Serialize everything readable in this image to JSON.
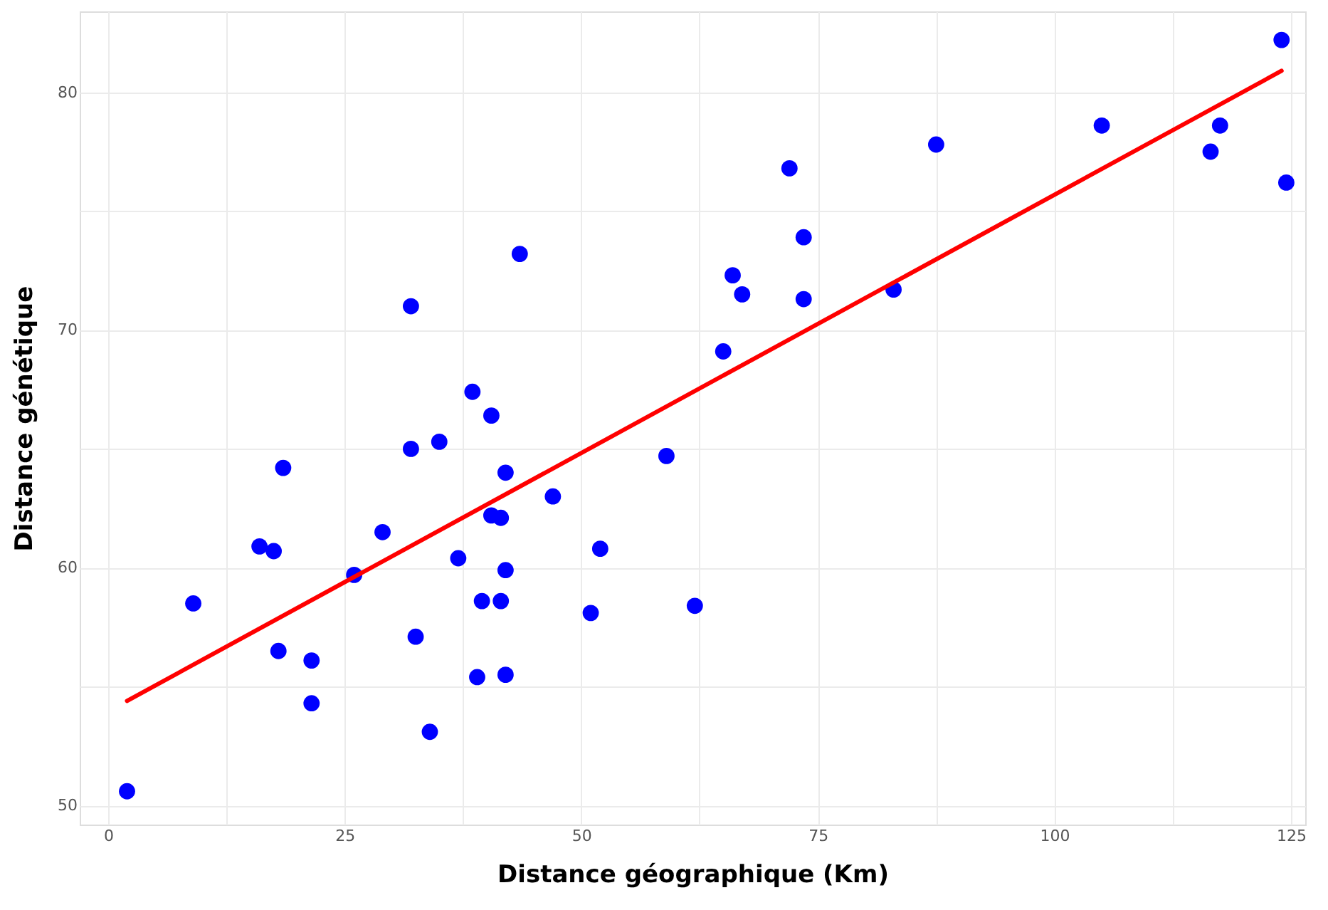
{
  "chart_data": {
    "type": "scatter",
    "xlabel": "Distance géographique (Km)",
    "ylabel": "Distance génétique",
    "xlim": [
      -3,
      126.5
    ],
    "ylim": [
      49.2,
      83.4
    ],
    "xticks": [
      0,
      {
        "value": 12.5,
        "label": null
      },
      25,
      {
        "value": 37.5,
        "label": null
      },
      50,
      {
        "value": 62.5,
        "label": null
      },
      75,
      {
        "value": 87.5,
        "label": null
      },
      100,
      {
        "value": 112.5,
        "label": null
      },
      125
    ],
    "yticks": [
      50,
      {
        "value": 55,
        "label": null
      },
      60,
      {
        "value": 65,
        "label": null
      },
      70,
      {
        "value": 75,
        "label": null
      },
      80
    ],
    "grid": true,
    "series": [
      {
        "color": "#0000ff",
        "marker": "circle",
        "x": [
          2,
          9,
          16,
          17.5,
          18,
          18.5,
          21.5,
          21.5,
          26,
          29,
          32,
          32,
          32.5,
          34,
          35,
          37,
          38.5,
          39,
          39.5,
          40.5,
          40.5,
          41.5,
          41.5,
          42,
          42,
          42,
          43.5,
          47,
          51,
          52,
          59,
          62,
          65,
          66,
          67,
          72,
          73.5,
          73.5,
          83,
          87.5,
          105,
          116.5,
          117.5,
          124,
          124.5
        ],
        "values": [
          50.6,
          58.5,
          60.9,
          60.7,
          56.5,
          64.2,
          56.1,
          54.3,
          59.7,
          61.5,
          71,
          65,
          57.1,
          53.1,
          65.3,
          60.4,
          67.4,
          55.4,
          58.6,
          66.4,
          62.2,
          62.1,
          58.6,
          64,
          59.9,
          55.5,
          73.2,
          63,
          58.1,
          60.8,
          64.7,
          58.4,
          69.1,
          72.3,
          71.5,
          76.8,
          73.9,
          71.3,
          71.7,
          77.8,
          78.6,
          77.5,
          78.6,
          82.2,
          76.2
        ]
      },
      {
        "type": "line",
        "color": "#ff0000",
        "line_style": "solid",
        "x": [
          2,
          124
        ],
        "values": [
          54.4,
          80.9
        ]
      }
    ]
  }
}
